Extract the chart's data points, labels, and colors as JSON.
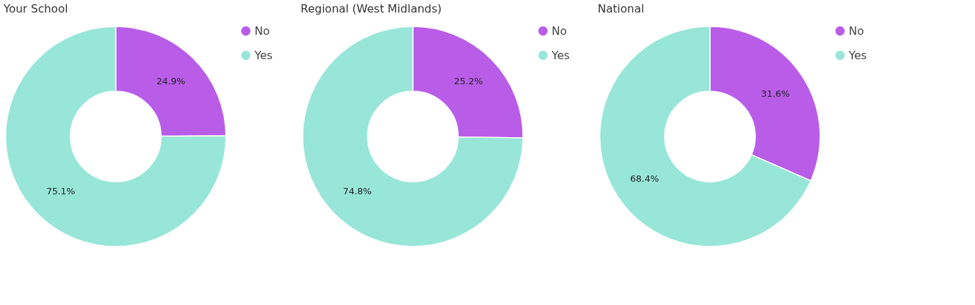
{
  "chart_data": [
    {
      "type": "donut",
      "title": "Your School",
      "categories": [
        "No",
        "Yes"
      ],
      "values": [
        24.9,
        75.1
      ],
      "colors": [
        "#b95de8",
        "#98e6d8"
      ],
      "value_labels": [
        "24.9%",
        "75.1%"
      ],
      "legend": "right"
    },
    {
      "type": "donut",
      "title": "Regional (West Midlands)",
      "categories": [
        "No",
        "Yes"
      ],
      "values": [
        25.2,
        74.8
      ],
      "colors": [
        "#b95de8",
        "#98e6d8"
      ],
      "value_labels": [
        "25.2%",
        "74.8%"
      ],
      "legend": "right"
    },
    {
      "type": "donut",
      "title": "National",
      "categories": [
        "No",
        "Yes"
      ],
      "values": [
        31.6,
        68.4
      ],
      "colors": [
        "#b95de8",
        "#98e6d8"
      ],
      "value_labels": [
        "31.6%",
        "68.4%"
      ],
      "legend": "right"
    }
  ]
}
